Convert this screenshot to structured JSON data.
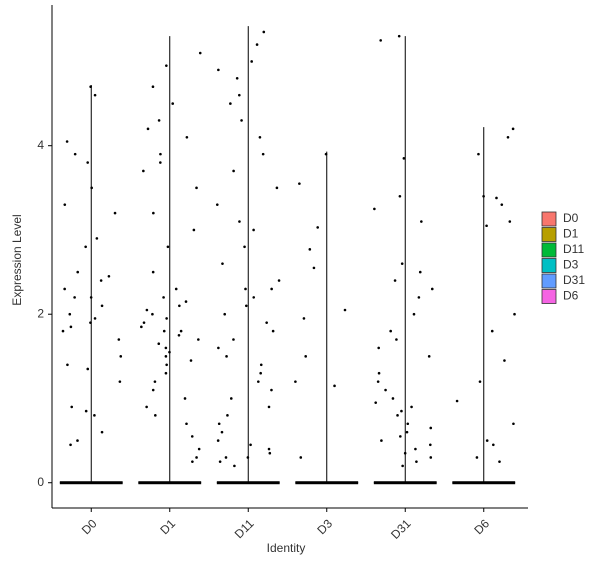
{
  "chart_data": {
    "type": "violin",
    "x_label": "Identity",
    "y_label": "Expression Level",
    "categories": [
      "D0",
      "D1",
      "D11",
      "D3",
      "D31",
      "D6"
    ],
    "colors": [
      "#F8766D",
      "#B79F00",
      "#00BA38",
      "#00BFC4",
      "#619CFF",
      "#F564E3"
    ],
    "max": [
      4.72,
      5.3,
      5.42,
      3.93,
      5.3,
      4.22
    ],
    "points": [
      [
        4.7,
        4.6,
        4.05,
        3.9,
        3.8,
        3.5,
        3.3,
        3.2,
        2.9,
        2.8,
        2.5,
        2.45,
        2.4,
        2.3,
        2.2,
        2.2,
        2.1,
        2.0,
        1.95,
        1.9,
        1.85,
        1.8,
        1.7,
        1.5,
        1.4,
        1.35,
        1.2,
        0.9,
        0.85,
        0.8,
        0.6,
        0.5,
        0.45
      ],
      [
        5.1,
        4.95,
        4.7,
        4.5,
        4.3,
        4.2,
        4.1,
        3.9,
        3.8,
        3.7,
        3.5,
        3.2,
        3.0,
        2.8,
        2.5,
        2.3,
        2.2,
        2.15,
        2.1,
        2.05,
        2.0,
        1.95,
        1.9,
        1.85,
        1.8,
        1.8,
        1.75,
        1.7,
        1.65,
        1.6,
        1.55,
        1.5,
        1.45,
        1.4,
        1.3,
        1.2,
        1.1,
        1.0,
        0.9,
        0.8,
        0.7,
        0.55,
        0.4,
        0.3,
        0.25
      ],
      [
        5.35,
        5.2,
        5.0,
        4.9,
        4.8,
        4.6,
        4.5,
        4.3,
        4.1,
        3.9,
        3.7,
        3.5,
        3.3,
        3.1,
        3.0,
        2.8,
        2.6,
        2.4,
        2.3,
        2.3,
        2.2,
        2.1,
        2.0,
        1.9,
        1.8,
        1.7,
        1.6,
        1.5,
        1.4,
        1.3,
        1.2,
        1.1,
        1.0,
        0.9,
        0.8,
        0.7,
        0.6,
        0.5,
        0.45,
        0.4,
        0.35,
        0.3,
        0.3,
        0.25,
        0.2
      ],
      [
        3.9,
        3.55,
        3.03,
        2.77,
        2.55,
        2.05,
        1.95,
        1.5,
        1.2,
        1.15,
        0.3
      ],
      [
        5.3,
        5.25,
        3.85,
        3.4,
        3.25,
        3.1,
        2.6,
        2.5,
        2.4,
        2.3,
        2.2,
        2.0,
        1.8,
        1.7,
        1.6,
        1.5,
        1.3,
        1.2,
        1.1,
        1.0,
        0.95,
        0.9,
        0.85,
        0.8,
        0.7,
        0.65,
        0.6,
        0.55,
        0.5,
        0.45,
        0.4,
        0.35,
        0.3,
        0.25,
        0.2
      ],
      [
        4.2,
        4.1,
        3.9,
        3.4,
        3.38,
        3.3,
        3.1,
        3.05,
        2.0,
        1.8,
        1.45,
        1.2,
        0.97,
        0.7,
        0.5,
        0.45,
        0.3,
        0.25
      ]
    ],
    "ylim": [
      -0.3,
      5.67
    ],
    "yticks": [
      0,
      2,
      4
    ],
    "legend": "right"
  }
}
